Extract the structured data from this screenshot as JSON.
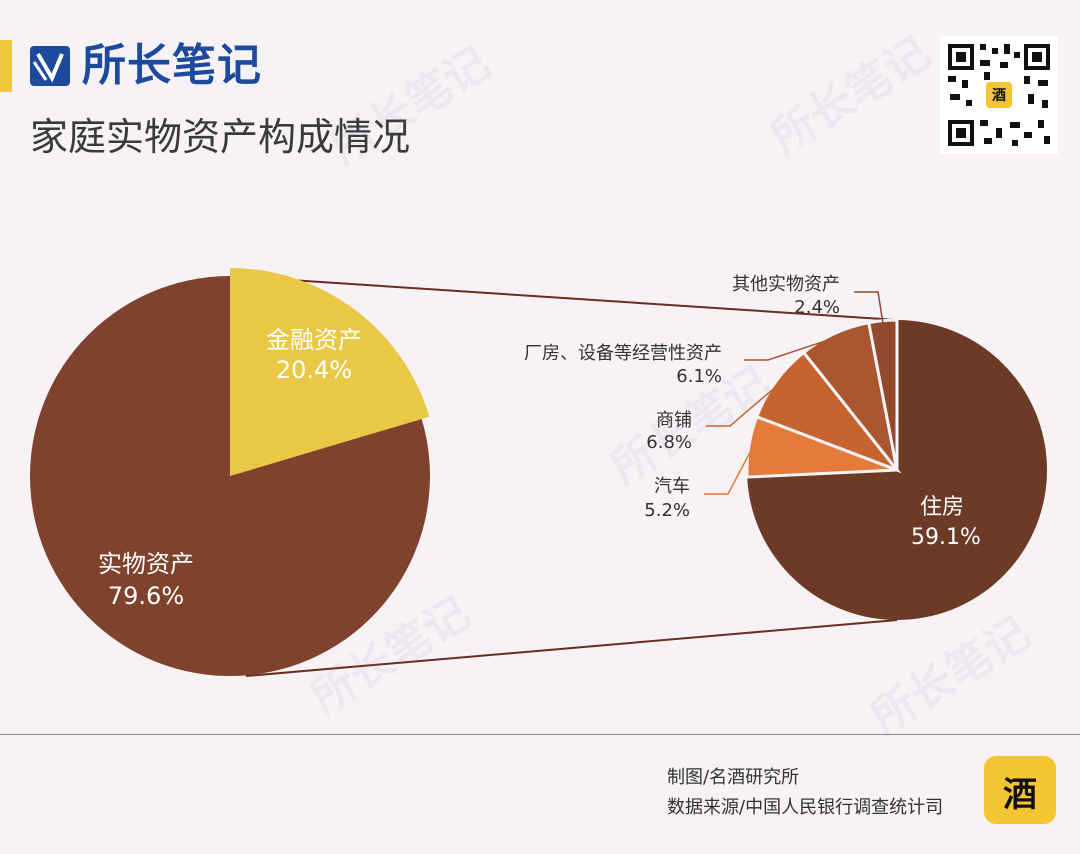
{
  "header": {
    "brand": "所长笔记",
    "title": "家庭实物资产构成情况"
  },
  "footer": {
    "credit_chart": "制图/名酒研究所",
    "credit_source": "数据来源/中国人民银行调查统计司"
  },
  "colors": {
    "brand_blue": "#1e4a9e",
    "accent_yellow": "#f0c63a",
    "financial": "#e8c845",
    "physical": "#7f432d",
    "housing": "#6d3a26",
    "car": "#e47a3b",
    "shop": "#c6642f",
    "factory": "#a95631",
    "other": "#94492d",
    "connector": "#6a2e1e"
  },
  "chart_data": [
    {
      "type": "pie",
      "title": "",
      "slices": [
        {
          "label": "金融资产",
          "value": 20.4,
          "display": "20.4%",
          "color": "#e8c845"
        },
        {
          "label": "实物资产",
          "value": 79.6,
          "display": "79.6%",
          "color": "#7f432d"
        }
      ]
    },
    {
      "type": "pie",
      "title": "",
      "slices": [
        {
          "label": "住房",
          "value": 59.1,
          "display": "59.1%",
          "color": "#6d3a26"
        },
        {
          "label": "汽车",
          "value": 5.2,
          "display": "5.2%",
          "color": "#e47a3b"
        },
        {
          "label": "商铺",
          "value": 6.8,
          "display": "6.8%",
          "color": "#c6642f"
        },
        {
          "label": "厂房、设备等经营性资产",
          "value": 6.1,
          "display": "6.1%",
          "color": "#a95631"
        },
        {
          "label": "其他实物资产",
          "value": 2.4,
          "display": "2.4%",
          "color": "#94492d"
        }
      ]
    }
  ]
}
